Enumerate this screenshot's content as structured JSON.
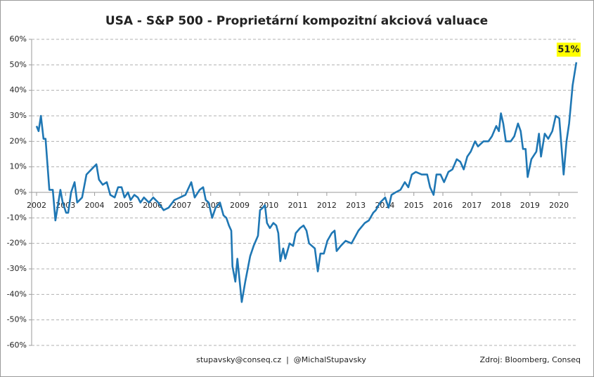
{
  "chart_data": {
    "type": "line",
    "title": "USA - S&P 500 - Proprietární kompozitní akciová valuace",
    "footer": "stupavsky@conseq.cz  |  @MichalStupavsky",
    "source": "Zdroj: Bloomberg, Conseq",
    "last_label": "51%",
    "xlim": [
      2002,
      2020.65
    ],
    "xticks": [
      2002,
      2003,
      2004,
      2005,
      2006,
      2007,
      2008,
      2009,
      2010,
      2011,
      2012,
      2013,
      2014,
      2015,
      2016,
      2017,
      2018,
      2019,
      2020
    ],
    "ylim": [
      -60,
      60
    ],
    "yticks": [
      {
        "value": 60,
        "label": "60%"
      },
      {
        "value": 50,
        "label": "50%"
      },
      {
        "value": 40,
        "label": "40%"
      },
      {
        "value": 30,
        "label": "30%"
      },
      {
        "value": 20,
        "label": "20%"
      },
      {
        "value": 10,
        "label": "10%"
      },
      {
        "value": 0,
        "label": "0%"
      },
      {
        "value": -10,
        "label": "-10%"
      },
      {
        "value": -20,
        "label": "-20%"
      },
      {
        "value": -30,
        "label": "-30%"
      },
      {
        "value": -40,
        "label": "-40%"
      },
      {
        "value": -50,
        "label": "-50%"
      },
      {
        "value": -60,
        "label": "-60%"
      }
    ],
    "grid": true,
    "x": [
      2002.0,
      2002.07,
      2002.15,
      2002.24,
      2002.31,
      2002.44,
      2002.56,
      2002.65,
      2002.75,
      2002.82,
      2002.9,
      2003.02,
      2003.09,
      2003.19,
      2003.31,
      2003.4,
      2003.57,
      2003.72,
      2003.89,
      2004.06,
      2004.15,
      2004.28,
      2004.42,
      2004.54,
      2004.69,
      2004.81,
      2004.93,
      2005.03,
      2005.15,
      2005.24,
      2005.37,
      2005.49,
      2005.58,
      2005.7,
      2005.87,
      2006.02,
      2006.19,
      2006.38,
      2006.55,
      2006.75,
      2006.94,
      2007.13,
      2007.33,
      2007.45,
      2007.62,
      2007.74,
      2007.83,
      2007.93,
      2008.05,
      2008.17,
      2008.32,
      2008.44,
      2008.54,
      2008.63,
      2008.71,
      2008.75,
      2008.85,
      2008.92,
      2009.0,
      2009.07,
      2009.19,
      2009.36,
      2009.48,
      2009.63,
      2009.7,
      2009.8,
      2009.87,
      2009.94,
      2010.04,
      2010.16,
      2010.26,
      2010.33,
      2010.4,
      2010.5,
      2010.57,
      2010.72,
      2010.84,
      2010.93,
      2011.08,
      2011.2,
      2011.3,
      2011.39,
      2011.49,
      2011.59,
      2011.69,
      2011.78,
      2011.9,
      2012.02,
      2012.17,
      2012.27,
      2012.34,
      2012.48,
      2012.65,
      2012.85,
      2013.09,
      2013.31,
      2013.45,
      2013.6,
      2013.69,
      2013.84,
      2014.01,
      2014.13,
      2014.23,
      2014.37,
      2014.54,
      2014.69,
      2014.81,
      2014.93,
      2015.07,
      2015.27,
      2015.46,
      2015.56,
      2015.68,
      2015.78,
      2015.92,
      2016.04,
      2016.19,
      2016.33,
      2016.48,
      2016.6,
      2016.72,
      2016.84,
      2016.96,
      2017.11,
      2017.21,
      2017.4,
      2017.57,
      2017.69,
      2017.84,
      2017.93,
      2018.0,
      2018.08,
      2018.17,
      2018.34,
      2018.46,
      2018.59,
      2018.68,
      2018.76,
      2018.85,
      2018.92,
      2019.05,
      2019.22,
      2019.31,
      2019.38,
      2019.51,
      2019.63,
      2019.77,
      2019.89,
      2020.01,
      2020.16,
      2020.26,
      2020.35,
      2020.47,
      2020.6
    ],
    "series": [
      {
        "name": "S&P 500",
        "color": "#1f77b4",
        "values": [
          26,
          24,
          30,
          21,
          21,
          1,
          1,
          -11,
          -4,
          1,
          -4,
          -8,
          -8,
          0,
          4,
          -4,
          -2,
          7,
          9,
          11,
          5,
          3,
          4,
          -1,
          -2,
          2,
          2,
          -2,
          0,
          -3,
          -1,
          -2,
          -4,
          -2,
          -4,
          -2,
          -4,
          -7,
          -6,
          -3,
          -2,
          -1,
          4,
          -2,
          1,
          2,
          -3,
          -4,
          -10,
          -6,
          -4,
          -9,
          -10,
          -13,
          -15,
          -29,
          -35,
          -26,
          -35,
          -43,
          -35,
          -25,
          -21,
          -17,
          -7,
          -6,
          -5,
          -12,
          -14,
          -12,
          -13,
          -16,
          -27,
          -22,
          -26,
          -20,
          -21,
          -16,
          -14,
          -13,
          -15,
          -20,
          -21,
          -22,
          -31,
          -24,
          -24,
          -19,
          -16,
          -15,
          -23,
          -21,
          -19,
          -20,
          -15,
          -12,
          -11,
          -8,
          -7,
          -4,
          -2,
          -6,
          -1,
          0,
          1,
          4,
          2,
          7,
          8,
          7,
          7,
          2,
          -1,
          7,
          7,
          4,
          8,
          9,
          13,
          12,
          9,
          14,
          16,
          20,
          18,
          20,
          20,
          22,
          26,
          24,
          31,
          27,
          20,
          20,
          22,
          27,
          24,
          17,
          17,
          6,
          13,
          16,
          23,
          14,
          23,
          21,
          24,
          30,
          29,
          7,
          20,
          27,
          42,
          51
        ]
      }
    ]
  }
}
